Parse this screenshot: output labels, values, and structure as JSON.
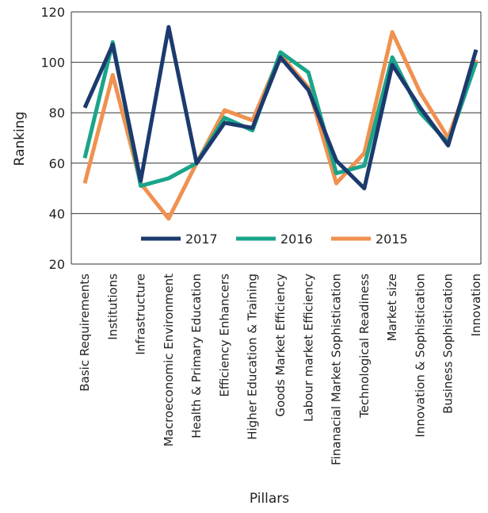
{
  "chart_data": {
    "type": "line",
    "x_label": "Pillars",
    "y_label": "Ranking",
    "categories": [
      "Basic Requirements",
      "Institutions",
      "Infrastructure",
      "Macroeconomic Environment",
      "Health & Primary Education",
      "Efficiency Enhancers",
      "Higher Education & Training",
      "Goods Market Efficiency",
      "Labour market Efficiency",
      "Finanacial Market Sophistication",
      "Technological Readiness",
      "Market size",
      "Innovation & Sophistication",
      "Business Sophistication",
      "Innovation"
    ],
    "series": [
      {
        "name": "2017",
        "color": "#1c3a6e",
        "values": [
          82,
          107,
          53,
          114,
          60,
          76,
          74,
          102,
          89,
          61,
          50,
          99,
          82,
          67,
          105
        ]
      },
      {
        "name": "2016",
        "color": "#1aa58a",
        "values": [
          62,
          108,
          51,
          54,
          60,
          78,
          73,
          104,
          96,
          56,
          59,
          102,
          80,
          68,
          100
        ]
      },
      {
        "name": "2015",
        "color": "#f0914f",
        "values": [
          52,
          95,
          52,
          38,
          60,
          81,
          77,
          103,
          90,
          52,
          64,
          112,
          88,
          70,
          101
        ]
      }
    ],
    "ylim": [
      20,
      120
    ],
    "yticks": [
      20,
      40,
      60,
      80,
      100,
      120
    ],
    "grid": true,
    "legend": "bottom"
  }
}
